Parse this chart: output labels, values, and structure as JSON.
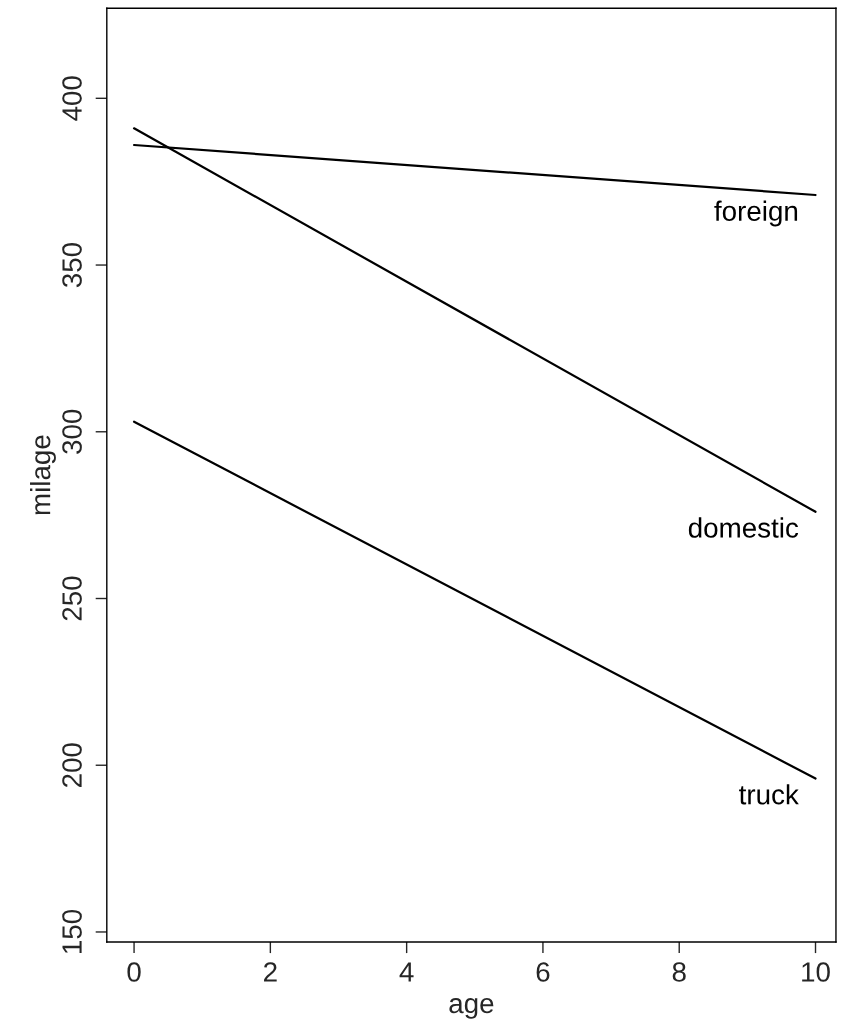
{
  "chart_data": {
    "type": "line",
    "xlabel": "age",
    "ylabel": "milage",
    "x": [
      0,
      10
    ],
    "series": [
      {
        "name": "foreign",
        "color": "#000000",
        "values": [
          386,
          371
        ]
      },
      {
        "name": "domestic",
        "color": "#000000",
        "values": [
          391,
          276
        ]
      },
      {
        "name": "truck",
        "color": "#000000",
        "values": [
          303,
          196
        ]
      }
    ],
    "xlim": [
      -0.4,
      10.3
    ],
    "ylim": [
      147,
      427
    ],
    "xticks": [
      0,
      2,
      4,
      6,
      8,
      10
    ],
    "yticks": [
      150,
      200,
      250,
      300,
      350,
      400
    ],
    "grid": false,
    "marker": "none",
    "line_style": "solid"
  }
}
